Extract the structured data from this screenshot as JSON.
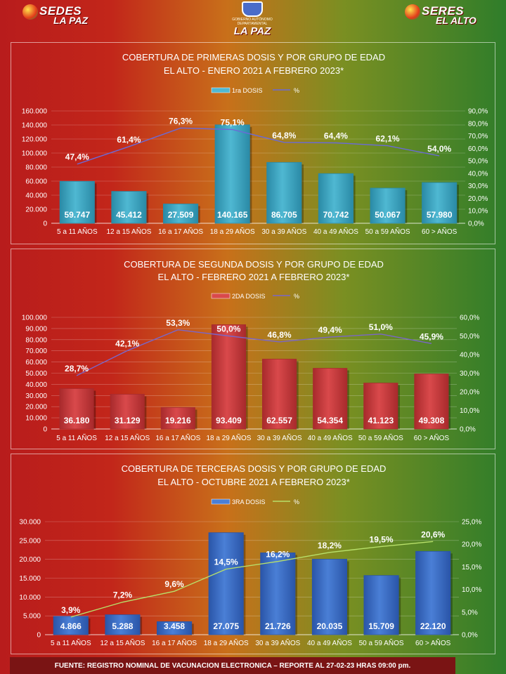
{
  "logos": {
    "left": {
      "line1": "SEDES",
      "line2": "LA PAZ"
    },
    "center": {
      "line1": "GOBIERNO AUTÓNOMO DEPARTAMENTAL",
      "line2": "LA PAZ"
    },
    "right": {
      "line1": "SERES",
      "line2": "EL ALTO"
    }
  },
  "footer": "FUENTE: REGISTRO NOMINAL DE VACUNACION ELECTRONICA – REPORTE AL 27-02-23 HRAS 09:00 pm.",
  "chart_data": [
    {
      "type": "bar",
      "title": "COBERTURA DE PRIMERAS DOSIS Y POR GRUPO DE EDAD",
      "subtitle": "EL ALTO - ENERO 2021 A FEBRERO 2023*",
      "categories": [
        "5 a 11 AÑOS",
        "12 a 15 AÑOS",
        "16 a 17 AÑOS",
        "18 a 29 AÑOS",
        "30 a 39 AÑOS",
        "40 a 49 AÑOS",
        "50 a 59 AÑOS",
        "60 > AÑOS"
      ],
      "series": [
        {
          "name": "1ra DOSIS",
          "values": [
            59747,
            45412,
            27509,
            140165,
            86705,
            70742,
            50067,
            57980
          ],
          "labels": [
            "59.747",
            "45.412",
            "27.509",
            "140.165",
            "86.705",
            "70.742",
            "50.067",
            "57.980"
          ]
        },
        {
          "name": "%",
          "values": [
            47.4,
            61.4,
            76.3,
            75.1,
            64.8,
            64.4,
            62.1,
            54.0
          ],
          "labels": [
            "47,4%",
            "61,4%",
            "76,3%",
            "75,1%",
            "64,8%",
            "64,4%",
            "62,1%",
            "54,0%"
          ]
        }
      ],
      "y_ticks": [
        "0",
        "20.000",
        "40.000",
        "60.000",
        "80.000",
        "100.000",
        "120.000",
        "140.000",
        "160.000"
      ],
      "y2_ticks": [
        "0,0%",
        "10,0%",
        "20,0%",
        "30,0%",
        "40,0%",
        "50,0%",
        "60,0%",
        "70,0%",
        "80,0%",
        "90,0%"
      ],
      "ylim": [
        0,
        160000
      ],
      "y2lim": [
        0,
        90
      ],
      "colors": {
        "bar": "#4fb8d2",
        "bar_dark": "#2a8aa6",
        "line": "#6a6ad8"
      },
      "legend": "top",
      "grid": true
    },
    {
      "type": "bar",
      "title": "COBERTURA DE SEGUNDA DOSIS Y POR GRUPO DE EDAD",
      "subtitle": "EL ALTO - FEBRERO 2021 A FEBRERO 2023*",
      "categories": [
        "5 a 11 AÑOS",
        "12 a 15 AÑOS",
        "16 a 17 AÑOS",
        "18 a 29 AÑOS",
        "30 a 39 AÑOS",
        "40 a 49 AÑOS",
        "50 a 59 AÑOS",
        "60 > AÑOS"
      ],
      "series": [
        {
          "name": "2DA DOSIS",
          "values": [
            36180,
            31129,
            19216,
            93409,
            62557,
            54354,
            41123,
            49308
          ],
          "labels": [
            "36.180",
            "31.129",
            "19.216",
            "93.409",
            "62.557",
            "54.354",
            "41.123",
            "49.308"
          ]
        },
        {
          "name": "%",
          "values": [
            28.7,
            42.1,
            53.3,
            50.0,
            46.8,
            49.4,
            51.0,
            45.9
          ],
          "labels": [
            "28,7%",
            "42,1%",
            "53,3%",
            "50,0%",
            "46,8%",
            "49,4%",
            "51,0%",
            "45,9%"
          ]
        }
      ],
      "y_ticks": [
        "0",
        "10.000",
        "20.000",
        "30.000",
        "40.000",
        "50.000",
        "60.000",
        "70.000",
        "80.000",
        "90.000",
        "100.000"
      ],
      "y2_ticks": [
        "0,0%",
        "10,0%",
        "20,0%",
        "30,0%",
        "40,0%",
        "50,0%",
        "60,0%"
      ],
      "ylim": [
        0,
        100000
      ],
      "y2lim": [
        0,
        60
      ],
      "colors": {
        "bar": "#d9494b",
        "bar_dark": "#a82a2c",
        "line": "#7a66c8"
      },
      "legend": "top",
      "grid": true
    },
    {
      "type": "bar",
      "title": "COBERTURA DE TERCERAS DOSIS Y POR GRUPO DE EDAD",
      "subtitle": "EL ALTO  - OCTUBRE 2021 A FEBRERO 2023*",
      "categories": [
        "5 a 11 AÑOS",
        "12 a 15 AÑOS",
        "16 a 17 AÑOS",
        "18 a 29 AÑOS",
        "30 a 39 AÑOS",
        "40 a 49 AÑOS",
        "50 a 59 AÑOS",
        "60 > AÑOS"
      ],
      "series": [
        {
          "name": "3RA DOSIS",
          "values": [
            4866,
            5288,
            3458,
            27075,
            21726,
            20035,
            15709,
            22120
          ],
          "labels": [
            "4.866",
            "5.288",
            "3.458",
            "27.075",
            "21.726",
            "20.035",
            "15.709",
            "22.120"
          ]
        },
        {
          "name": "%",
          "values": [
            3.9,
            7.2,
            9.6,
            14.5,
            16.2,
            18.2,
            19.5,
            20.6
          ],
          "labels": [
            "3,9%",
            "7,2%",
            "9,6%",
            "14,5%",
            "16,2%",
            "18,2%",
            "19,5%",
            "20,6%"
          ]
        }
      ],
      "y_ticks": [
        "0",
        "5.000",
        "10.000",
        "15.000",
        "20.000",
        "25.000",
        "30.000"
      ],
      "y2_ticks": [
        "0,0%",
        "5,0%",
        "10,0%",
        "15,0%",
        "20,0%",
        "25,0%"
      ],
      "ylim": [
        0,
        30000
      ],
      "y2lim": [
        0,
        25
      ],
      "colors": {
        "bar": "#4a7fd6",
        "bar_dark": "#2a55a8",
        "line": "#b8e06a"
      },
      "legend": "top",
      "grid": true
    }
  ]
}
